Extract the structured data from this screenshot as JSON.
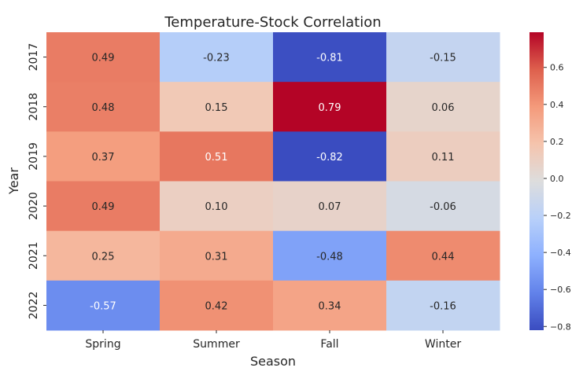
{
  "chart_data": {
    "type": "heatmap",
    "title": "Temperature-Stock Correlation",
    "xlabel": "Season",
    "ylabel": "Year",
    "x_categories": [
      "Spring",
      "Summer",
      "Fall",
      "Winter"
    ],
    "y_categories": [
      "2017",
      "2018",
      "2019",
      "2020",
      "2021",
      "2022"
    ],
    "values": [
      [
        0.49,
        -0.23,
        -0.81,
        -0.15
      ],
      [
        0.48,
        0.15,
        0.79,
        0.06
      ],
      [
        0.37,
        0.51,
        -0.82,
        0.11
      ],
      [
        0.49,
        0.1,
        0.07,
        -0.06
      ],
      [
        0.25,
        0.31,
        -0.48,
        0.44
      ],
      [
        -0.57,
        0.42,
        0.34,
        -0.16
      ]
    ],
    "colormap": "coolwarm",
    "vmin": -0.82,
    "vmax": 0.79,
    "colorbar_ticks": [
      0.6,
      0.4,
      0.2,
      0.0,
      -0.2,
      -0.4,
      -0.6,
      -0.8
    ],
    "colorbar_tick_labels": [
      "0.6",
      "0.4",
      "0.2",
      "0.0",
      "−0.2",
      "−0.4",
      "−0.6",
      "−0.8"
    ]
  }
}
